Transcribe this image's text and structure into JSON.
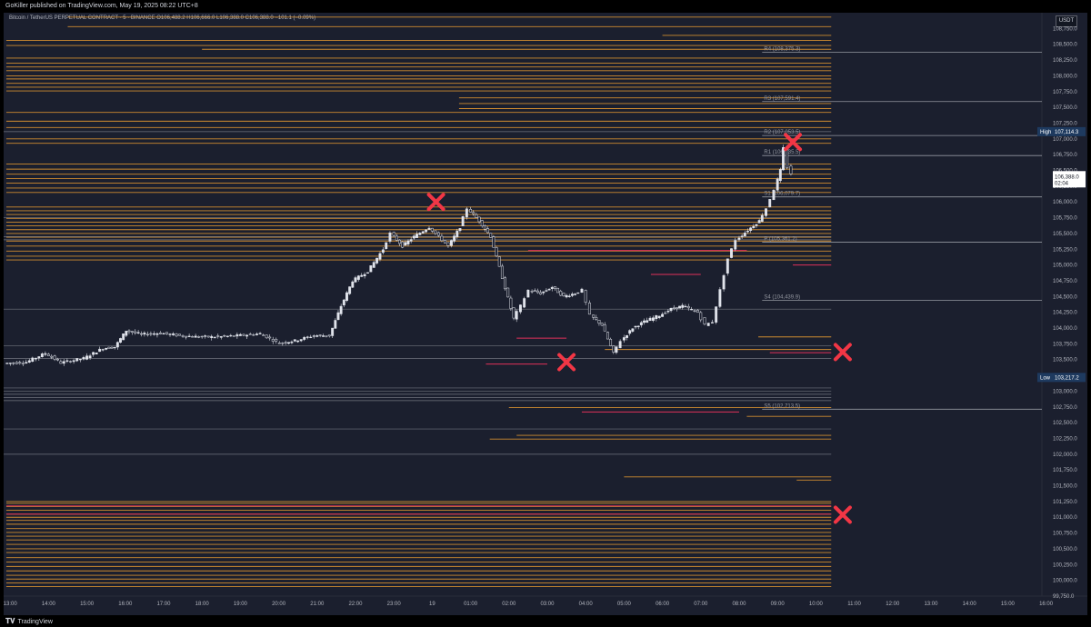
{
  "header": {
    "published_text": "GoKiller published on TradingView.com, May 19, 2025 08:22 UTC+8"
  },
  "symbol_line": "Bitcoin / TetherUS PERPETUAL CONTRACT · 5 · BINANCE  O106,488.2  H106,666.0  L106,388.0  C106,388.0  −101.1 (−0.09%)",
  "currency_button": "USDT",
  "footer": {
    "logo_text": "TradingView"
  },
  "colors": {
    "background": "#1b1f2e",
    "candle": "#e0e3eb",
    "pivot_line": "#9598a1",
    "orange_level": "#f0a030",
    "pink_level": "#e0305a",
    "marker": "#f23645",
    "high_box": "#1e3a5f"
  },
  "chart_data": {
    "type": "candlestick",
    "symbol": "BTCUSDT.P",
    "interval": "5",
    "exchange": "BINANCE",
    "ohlc_last": {
      "open": 106488.2,
      "high": 106666.0,
      "low": 106388.0,
      "close": 106388.0,
      "change": -101.1,
      "change_pct": -0.09
    },
    "ylim": [
      99750,
      109000
    ],
    "y_ticks": [
      "108,750.0",
      "108,500.0",
      "108,250.0",
      "108,000.0",
      "107,750.0",
      "107,500.0",
      "107,250.0",
      "107,000.0",
      "106,750.0",
      "106,500.0",
      "106,250.0",
      "106,000.0",
      "105,750.0",
      "105,500.0",
      "105,250.0",
      "105,000.0",
      "104,750.0",
      "104,500.0",
      "104,250.0",
      "104,000.0",
      "103,750.0",
      "103,500.0",
      "103,250.0",
      "103,000.0",
      "102,750.0",
      "102,500.0",
      "102,250.0",
      "102,000.0",
      "101,750.0",
      "101,500.0",
      "101,250.0",
      "101,000.0",
      "100,750.0",
      "100,500.0",
      "100,250.0",
      "100,000.0",
      "99,750.0"
    ],
    "x_ticks": [
      "13:00",
      "14:00",
      "15:00",
      "16:00",
      "17:00",
      "18:00",
      "19:00",
      "20:00",
      "21:00",
      "22:00",
      "23:00",
      "19",
      "01:00",
      "02:00",
      "03:00",
      "04:00",
      "05:00",
      "06:00",
      "07:00",
      "08:00",
      "09:00",
      "10:00",
      "11:00",
      "12:00",
      "13:00",
      "14:00",
      "15:00",
      "16:00"
    ],
    "price_path": [
      {
        "t": 12.92,
        "p": 103440
      },
      {
        "t": 13.5,
        "p": 103460
      },
      {
        "t": 14.0,
        "p": 103600
      },
      {
        "t": 14.4,
        "p": 103450
      },
      {
        "t": 15.0,
        "p": 103520
      },
      {
        "t": 15.5,
        "p": 103680
      },
      {
        "t": 15.8,
        "p": 103700
      },
      {
        "t": 16.1,
        "p": 103960
      },
      {
        "t": 16.5,
        "p": 103900
      },
      {
        "t": 17.0,
        "p": 103920
      },
      {
        "t": 17.5,
        "p": 103880
      },
      {
        "t": 18.0,
        "p": 103860
      },
      {
        "t": 18.5,
        "p": 103860
      },
      {
        "t": 19.0,
        "p": 103880
      },
      {
        "t": 19.6,
        "p": 103910
      },
      {
        "t": 20.1,
        "p": 103760
      },
      {
        "t": 20.5,
        "p": 103800
      },
      {
        "t": 21.0,
        "p": 103880
      },
      {
        "t": 21.4,
        "p": 103880
      },
      {
        "t": 21.7,
        "p": 104350
      },
      {
        "t": 22.0,
        "p": 104750
      },
      {
        "t": 22.4,
        "p": 104900
      },
      {
        "t": 22.8,
        "p": 105250
      },
      {
        "t": 23.0,
        "p": 105500
      },
      {
        "t": 23.3,
        "p": 105300
      },
      {
        "t": 23.6,
        "p": 105450
      },
      {
        "t": 24.0,
        "p": 105600
      },
      {
        "t": 24.5,
        "p": 105300
      },
      {
        "t": 24.8,
        "p": 105600
      },
      {
        "t": 25.0,
        "p": 105900
      },
      {
        "t": 25.3,
        "p": 105700
      },
      {
        "t": 25.6,
        "p": 105450
      },
      {
        "t": 25.9,
        "p": 104800
      },
      {
        "t": 26.2,
        "p": 104150
      },
      {
        "t": 26.4,
        "p": 104350
      },
      {
        "t": 26.6,
        "p": 104600
      },
      {
        "t": 26.9,
        "p": 104550
      },
      {
        "t": 27.2,
        "p": 104650
      },
      {
        "t": 27.5,
        "p": 104500
      },
      {
        "t": 27.8,
        "p": 104550
      },
      {
        "t": 28.0,
        "p": 104600
      },
      {
        "t": 28.2,
        "p": 104200
      },
      {
        "t": 28.5,
        "p": 104050
      },
      {
        "t": 28.8,
        "p": 103600
      },
      {
        "t": 29.0,
        "p": 103800
      },
      {
        "t": 29.3,
        "p": 104000
      },
      {
        "t": 29.6,
        "p": 104100
      },
      {
        "t": 30.0,
        "p": 104200
      },
      {
        "t": 30.3,
        "p": 104300
      },
      {
        "t": 30.6,
        "p": 104350
      },
      {
        "t": 31.0,
        "p": 104250
      },
      {
        "t": 31.2,
        "p": 104050
      },
      {
        "t": 31.4,
        "p": 104100
      },
      {
        "t": 31.6,
        "p": 104600
      },
      {
        "t": 31.8,
        "p": 105100
      },
      {
        "t": 32.0,
        "p": 105400
      },
      {
        "t": 32.3,
        "p": 105550
      },
      {
        "t": 32.6,
        "p": 105700
      },
      {
        "t": 32.8,
        "p": 105900
      },
      {
        "t": 33.0,
        "p": 106200
      },
      {
        "t": 33.15,
        "p": 106500
      },
      {
        "t": 33.25,
        "p": 106850
      },
      {
        "t": 33.35,
        "p": 106550
      },
      {
        "t": 33.45,
        "p": 106450
      }
    ],
    "pivot_levels": [
      {
        "label": "R4 (108,375.3)",
        "value": 108375.3
      },
      {
        "label": "R3 (107,591.4)",
        "value": 107591.4
      },
      {
        "label": "R2 (107,053.5)",
        "value": 107053.5
      },
      {
        "label": "R1 (106,735.5)",
        "value": 106735.5
      },
      {
        "label": "S1 (106,079.7)",
        "value": 106079.7
      },
      {
        "label": "P (105,361.2)",
        "value": 105361.2
      },
      {
        "label": "S4 (104,439.9)",
        "value": 104439.9
      },
      {
        "label": "S5 (102,713.5)",
        "value": 102713.5
      }
    ],
    "extra_gray_levels": [
      107114.3,
      105750,
      105450,
      105400,
      104300,
      103720,
      103520,
      103050,
      103000,
      102950,
      102900,
      102850,
      102400,
      102000
    ],
    "orange_levels": [
      {
        "value": 108930,
        "x0": 14.5
      },
      {
        "value": 108780,
        "x0": 14.5
      },
      {
        "value": 108640,
        "x0": 30.0
      },
      {
        "value": 108560,
        "x0": 12.9
      },
      {
        "value": 108480,
        "x0": 12.9
      },
      {
        "value": 108420,
        "x0": 18.0
      },
      {
        "value": 108280,
        "x0": 12.9
      },
      {
        "value": 108200,
        "x0": 12.9
      },
      {
        "value": 108140,
        "x0": 12.9
      },
      {
        "value": 108080,
        "x0": 12.9
      },
      {
        "value": 108000,
        "x0": 12.9
      },
      {
        "value": 107950,
        "x0": 12.9
      },
      {
        "value": 107880,
        "x0": 12.9
      },
      {
        "value": 107820,
        "x0": 12.9
      },
      {
        "value": 107760,
        "x0": 12.9
      },
      {
        "value": 107650,
        "x0": 24.7
      },
      {
        "value": 107560,
        "x0": 24.7
      },
      {
        "value": 107480,
        "x0": 24.7
      },
      {
        "value": 107420,
        "x0": 12.9
      },
      {
        "value": 107280,
        "x0": 12.9
      },
      {
        "value": 107180,
        "x0": 12.9
      },
      {
        "value": 107000,
        "x0": 12.9
      },
      {
        "value": 106930,
        "x0": 12.9
      },
      {
        "value": 106600,
        "x0": 12.9
      },
      {
        "value": 106520,
        "x0": 12.9
      },
      {
        "value": 106440,
        "x0": 12.9
      },
      {
        "value": 106370,
        "x0": 12.9
      },
      {
        "value": 106300,
        "x0": 12.9
      },
      {
        "value": 106220,
        "x0": 12.9
      },
      {
        "value": 106150,
        "x0": 12.9
      },
      {
        "value": 105920,
        "x0": 12.9
      },
      {
        "value": 105860,
        "x0": 12.9
      },
      {
        "value": 105800,
        "x0": 12.9
      },
      {
        "value": 105740,
        "x0": 12.9
      },
      {
        "value": 105680,
        "x0": 12.9
      },
      {
        "value": 105620,
        "x0": 12.9
      },
      {
        "value": 105560,
        "x0": 12.9
      },
      {
        "value": 105500,
        "x0": 12.9
      },
      {
        "value": 105440,
        "x0": 12.9
      },
      {
        "value": 105380,
        "x0": 12.9
      },
      {
        "value": 105300,
        "x0": 12.9
      },
      {
        "value": 105220,
        "x0": 12.9
      },
      {
        "value": 105140,
        "x0": 12.9
      },
      {
        "value": 105080,
        "x0": 12.9
      },
      {
        "value": 103860,
        "x0": 32.5
      },
      {
        "value": 103660,
        "x0": 28.5
      },
      {
        "value": 102740,
        "x0": 26.0
      },
      {
        "value": 102600,
        "x0": 32.2
      },
      {
        "value": 102300,
        "x0": 26.2
      },
      {
        "value": 102240,
        "x0": 25.5
      },
      {
        "value": 101640,
        "x0": 29.0
      },
      {
        "value": 101590,
        "x0": 33.5
      },
      {
        "value": 101250,
        "x0": 12.9
      },
      {
        "value": 101220,
        "x0": 12.9
      },
      {
        "value": 101170,
        "x0": 12.9
      },
      {
        "value": 101110,
        "x0": 12.9
      },
      {
        "value": 101050,
        "x0": 12.9
      },
      {
        "value": 101000,
        "x0": 12.9
      },
      {
        "value": 100950,
        "x0": 12.9
      },
      {
        "value": 100890,
        "x0": 12.9
      },
      {
        "value": 100820,
        "x0": 12.9
      },
      {
        "value": 100760,
        "x0": 12.9
      },
      {
        "value": 100700,
        "x0": 12.9
      },
      {
        "value": 100640,
        "x0": 12.9
      },
      {
        "value": 100570,
        "x0": 12.9
      },
      {
        "value": 100500,
        "x0": 12.9
      },
      {
        "value": 100440,
        "x0": 12.9
      },
      {
        "value": 100360,
        "x0": 12.9
      },
      {
        "value": 100290,
        "x0": 12.9
      },
      {
        "value": 100220,
        "x0": 12.9
      },
      {
        "value": 100150,
        "x0": 12.9
      },
      {
        "value": 100080,
        "x0": 12.9
      },
      {
        "value": 100020,
        "x0": 12.9
      },
      {
        "value": 99960,
        "x0": 12.9
      },
      {
        "value": 99900,
        "x0": 12.9
      }
    ],
    "pink_levels": [
      {
        "value": 105230,
        "x0": 26.5,
        "x1": 32.2
      },
      {
        "value": 105000,
        "x0": 33.4,
        "x1": 34.4
      },
      {
        "value": 104850,
        "x0": 29.7,
        "x1": 31.0
      },
      {
        "value": 103840,
        "x0": 26.2,
        "x1": 27.5
      },
      {
        "value": 103610,
        "x0": 32.8,
        "x1": 34.4
      },
      {
        "value": 103430,
        "x0": 25.4,
        "x1": 27.0
      },
      {
        "value": 102670,
        "x0": 27.9,
        "x1": 32.0
      },
      {
        "value": 101180,
        "x0": 12.9,
        "x1": 34.4
      },
      {
        "value": 101050,
        "x0": 12.9,
        "x1": 34.4
      }
    ],
    "markers": [
      {
        "t": 24.1,
        "p": 106000
      },
      {
        "t": 33.4,
        "p": 106950
      },
      {
        "t": 27.5,
        "p": 103460
      },
      {
        "t": 34.7,
        "p": 103620
      },
      {
        "t": 34.7,
        "p": 101040
      }
    ],
    "price_labels": {
      "high": {
        "label": "High",
        "value": "107,114.3",
        "price": 107114.3
      },
      "low": {
        "label": "Low",
        "value": "103,217.2",
        "price": 103217.2
      },
      "current": {
        "value": "106,388.0",
        "countdown": "02:04",
        "price": 106388.0
      }
    }
  }
}
